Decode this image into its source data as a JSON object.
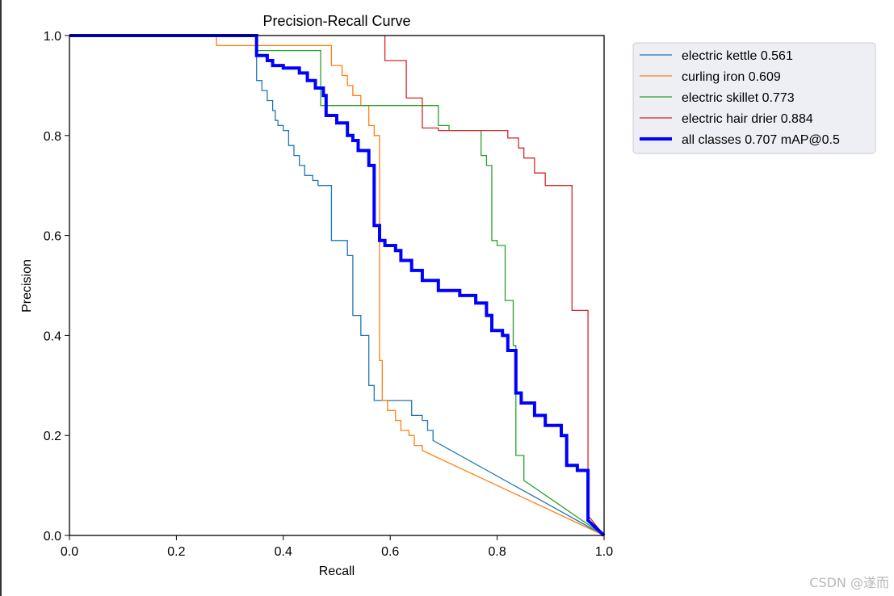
{
  "chart_data": {
    "type": "line",
    "title": "Precision-Recall Curve",
    "xlabel": "Recall",
    "ylabel": "Precision",
    "xlim": [
      0,
      1
    ],
    "ylim": [
      0,
      1
    ],
    "xticks": [
      "0.0",
      "0.2",
      "0.4",
      "0.6",
      "0.8",
      "1.0"
    ],
    "yticks": [
      "0.0",
      "0.2",
      "0.4",
      "0.6",
      "0.8",
      "1.0"
    ],
    "grid": false,
    "legend_position": "outside-top-right",
    "series": [
      {
        "name": "electric kettle 0.561",
        "color": "#1f77b4",
        "line_width": "thin",
        "points": [
          [
            0,
            1
          ],
          [
            0.35,
            1
          ],
          [
            0.35,
            0.91
          ],
          [
            0.36,
            0.91
          ],
          [
            0.36,
            0.89
          ],
          [
            0.37,
            0.89
          ],
          [
            0.37,
            0.87
          ],
          [
            0.38,
            0.87
          ],
          [
            0.38,
            0.85
          ],
          [
            0.385,
            0.85
          ],
          [
            0.385,
            0.83
          ],
          [
            0.39,
            0.83
          ],
          [
            0.39,
            0.82
          ],
          [
            0.4,
            0.82
          ],
          [
            0.4,
            0.81
          ],
          [
            0.41,
            0.81
          ],
          [
            0.41,
            0.78
          ],
          [
            0.42,
            0.78
          ],
          [
            0.42,
            0.76
          ],
          [
            0.43,
            0.76
          ],
          [
            0.43,
            0.74
          ],
          [
            0.44,
            0.74
          ],
          [
            0.44,
            0.72
          ],
          [
            0.455,
            0.72
          ],
          [
            0.455,
            0.71
          ],
          [
            0.465,
            0.71
          ],
          [
            0.465,
            0.7
          ],
          [
            0.49,
            0.7
          ],
          [
            0.49,
            0.59
          ],
          [
            0.52,
            0.59
          ],
          [
            0.52,
            0.56
          ],
          [
            0.53,
            0.56
          ],
          [
            0.53,
            0.44
          ],
          [
            0.545,
            0.44
          ],
          [
            0.545,
            0.4
          ],
          [
            0.56,
            0.4
          ],
          [
            0.56,
            0.3
          ],
          [
            0.57,
            0.3
          ],
          [
            0.57,
            0.27
          ],
          [
            0.64,
            0.27
          ],
          [
            0.64,
            0.24
          ],
          [
            0.66,
            0.24
          ],
          [
            0.66,
            0.23
          ],
          [
            0.67,
            0.23
          ],
          [
            0.67,
            0.21
          ],
          [
            0.68,
            0.21
          ],
          [
            0.68,
            0.19
          ],
          [
            1.0,
            0
          ]
        ]
      },
      {
        "name": "curling iron 0.609",
        "color": "#ff7f0e",
        "line_width": "thin",
        "points": [
          [
            0,
            1
          ],
          [
            0.275,
            1
          ],
          [
            0.275,
            0.98
          ],
          [
            0.49,
            0.98
          ],
          [
            0.49,
            0.94
          ],
          [
            0.51,
            0.94
          ],
          [
            0.51,
            0.92
          ],
          [
            0.52,
            0.92
          ],
          [
            0.52,
            0.9
          ],
          [
            0.53,
            0.9
          ],
          [
            0.53,
            0.88
          ],
          [
            0.545,
            0.88
          ],
          [
            0.545,
            0.86
          ],
          [
            0.56,
            0.86
          ],
          [
            0.56,
            0.82
          ],
          [
            0.57,
            0.82
          ],
          [
            0.57,
            0.8
          ],
          [
            0.58,
            0.8
          ],
          [
            0.58,
            0.35
          ],
          [
            0.585,
            0.35
          ],
          [
            0.585,
            0.27
          ],
          [
            0.595,
            0.27
          ],
          [
            0.595,
            0.25
          ],
          [
            0.61,
            0.25
          ],
          [
            0.61,
            0.23
          ],
          [
            0.62,
            0.23
          ],
          [
            0.62,
            0.21
          ],
          [
            0.635,
            0.21
          ],
          [
            0.635,
            0.2
          ],
          [
            0.645,
            0.2
          ],
          [
            0.645,
            0.18
          ],
          [
            0.66,
            0.18
          ],
          [
            0.66,
            0.17
          ],
          [
            1.0,
            0
          ]
        ]
      },
      {
        "name": "electric skillet 0.773",
        "color": "#2ca02c",
        "line_width": "thin",
        "points": [
          [
            0,
            1
          ],
          [
            0.35,
            1
          ],
          [
            0.35,
            0.97
          ],
          [
            0.47,
            0.97
          ],
          [
            0.47,
            0.86
          ],
          [
            0.69,
            0.86
          ],
          [
            0.69,
            0.82
          ],
          [
            0.71,
            0.82
          ],
          [
            0.71,
            0.81
          ],
          [
            0.77,
            0.81
          ],
          [
            0.77,
            0.76
          ],
          [
            0.78,
            0.76
          ],
          [
            0.78,
            0.74
          ],
          [
            0.79,
            0.74
          ],
          [
            0.79,
            0.59
          ],
          [
            0.8,
            0.59
          ],
          [
            0.8,
            0.58
          ],
          [
            0.815,
            0.58
          ],
          [
            0.815,
            0.47
          ],
          [
            0.83,
            0.47
          ],
          [
            0.83,
            0.38
          ],
          [
            0.835,
            0.38
          ],
          [
            0.835,
            0.16
          ],
          [
            0.85,
            0.16
          ],
          [
            0.85,
            0.11
          ],
          [
            1.0,
            0
          ]
        ]
      },
      {
        "name": "electric hair drier 0.884",
        "color": "#d62728",
        "line_width": "thin",
        "points": [
          [
            0.59,
            1
          ],
          [
            0.59,
            0.95
          ],
          [
            0.63,
            0.95
          ],
          [
            0.63,
            0.875
          ],
          [
            0.66,
            0.875
          ],
          [
            0.66,
            0.815
          ],
          [
            0.69,
            0.815
          ],
          [
            0.69,
            0.81
          ],
          [
            0.82,
            0.81
          ],
          [
            0.82,
            0.795
          ],
          [
            0.84,
            0.795
          ],
          [
            0.84,
            0.775
          ],
          [
            0.85,
            0.775
          ],
          [
            0.85,
            0.755
          ],
          [
            0.87,
            0.755
          ],
          [
            0.87,
            0.725
          ],
          [
            0.89,
            0.725
          ],
          [
            0.89,
            0.7
          ],
          [
            0.94,
            0.7
          ],
          [
            0.94,
            0.45
          ],
          [
            0.97,
            0.45
          ],
          [
            0.97,
            0.04
          ],
          [
            1.0,
            0
          ]
        ]
      },
      {
        "name": "all classes 0.707 mAP@0.5",
        "color": "#0000ff",
        "line_width": "thick",
        "points": [
          [
            0,
            1
          ],
          [
            0.35,
            1
          ],
          [
            0.35,
            0.96
          ],
          [
            0.37,
            0.96
          ],
          [
            0.37,
            0.95
          ],
          [
            0.38,
            0.95
          ],
          [
            0.38,
            0.94
          ],
          [
            0.4,
            0.94
          ],
          [
            0.4,
            0.935
          ],
          [
            0.43,
            0.935
          ],
          [
            0.43,
            0.925
          ],
          [
            0.445,
            0.925
          ],
          [
            0.445,
            0.91
          ],
          [
            0.46,
            0.91
          ],
          [
            0.46,
            0.895
          ],
          [
            0.475,
            0.895
          ],
          [
            0.475,
            0.88
          ],
          [
            0.48,
            0.88
          ],
          [
            0.48,
            0.84
          ],
          [
            0.5,
            0.84
          ],
          [
            0.5,
            0.825
          ],
          [
            0.52,
            0.825
          ],
          [
            0.52,
            0.8
          ],
          [
            0.53,
            0.8
          ],
          [
            0.53,
            0.79
          ],
          [
            0.54,
            0.79
          ],
          [
            0.54,
            0.77
          ],
          [
            0.56,
            0.77
          ],
          [
            0.56,
            0.74
          ],
          [
            0.57,
            0.74
          ],
          [
            0.57,
            0.62
          ],
          [
            0.58,
            0.62
          ],
          [
            0.58,
            0.59
          ],
          [
            0.59,
            0.59
          ],
          [
            0.59,
            0.58
          ],
          [
            0.61,
            0.58
          ],
          [
            0.61,
            0.57
          ],
          [
            0.62,
            0.57
          ],
          [
            0.62,
            0.55
          ],
          [
            0.64,
            0.55
          ],
          [
            0.64,
            0.53
          ],
          [
            0.66,
            0.53
          ],
          [
            0.66,
            0.51
          ],
          [
            0.69,
            0.51
          ],
          [
            0.69,
            0.49
          ],
          [
            0.73,
            0.49
          ],
          [
            0.73,
            0.48
          ],
          [
            0.76,
            0.48
          ],
          [
            0.76,
            0.465
          ],
          [
            0.78,
            0.465
          ],
          [
            0.78,
            0.44
          ],
          [
            0.79,
            0.44
          ],
          [
            0.79,
            0.41
          ],
          [
            0.81,
            0.41
          ],
          [
            0.81,
            0.4
          ],
          [
            0.82,
            0.4
          ],
          [
            0.82,
            0.37
          ],
          [
            0.835,
            0.37
          ],
          [
            0.835,
            0.285
          ],
          [
            0.845,
            0.285
          ],
          [
            0.845,
            0.265
          ],
          [
            0.87,
            0.265
          ],
          [
            0.87,
            0.24
          ],
          [
            0.89,
            0.24
          ],
          [
            0.89,
            0.22
          ],
          [
            0.92,
            0.22
          ],
          [
            0.92,
            0.2
          ],
          [
            0.93,
            0.2
          ],
          [
            0.93,
            0.14
          ],
          [
            0.95,
            0.14
          ],
          [
            0.95,
            0.13
          ],
          [
            0.97,
            0.13
          ],
          [
            0.97,
            0.03
          ],
          [
            1.0,
            0
          ]
        ]
      }
    ]
  },
  "watermark": "CSDN @遂而"
}
